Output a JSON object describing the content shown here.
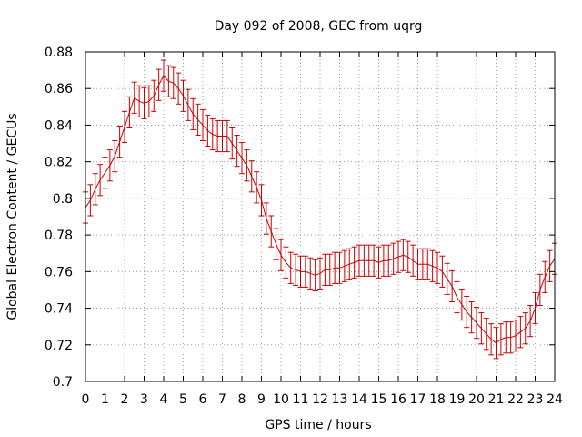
{
  "chart_data": {
    "type": "line",
    "title": "Day 092 of 2008, GEC from uqrg",
    "xlabel": "GPS time / hours",
    "ylabel": "Global Electron Content / GECUs",
    "xlim": [
      0,
      24
    ],
    "ylim": [
      0.7,
      0.88
    ],
    "x_ticks": [
      "0",
      "1",
      "2",
      "3",
      "4",
      "5",
      "6",
      "7",
      "8",
      "9",
      "10",
      "11",
      "12",
      "13",
      "14",
      "15",
      "16",
      "17",
      "18",
      "19",
      "20",
      "21",
      "22",
      "23",
      "24"
    ],
    "y_ticks": [
      "0.7",
      "0.72",
      "0.74",
      "0.76",
      "0.78",
      "0.8",
      "0.82",
      "0.84",
      "0.86",
      "0.88"
    ],
    "grid": true,
    "series": [
      {
        "name": "GEC",
        "color": "#cc0000",
        "error": 0.0085,
        "x": [
          0,
          0.25,
          0.5,
          0.75,
          1,
          1.25,
          1.5,
          1.75,
          2,
          2.25,
          2.5,
          2.75,
          3,
          3.25,
          3.5,
          3.75,
          4,
          4.25,
          4.5,
          4.75,
          5,
          5.25,
          5.5,
          5.75,
          6,
          6.25,
          6.5,
          6.75,
          7,
          7.25,
          7.5,
          7.75,
          8,
          8.25,
          8.5,
          8.75,
          9,
          9.25,
          9.5,
          9.75,
          10,
          10.25,
          10.5,
          10.75,
          11,
          11.25,
          11.5,
          11.75,
          12,
          12.25,
          12.5,
          12.75,
          13,
          13.25,
          13.5,
          13.75,
          14,
          14.25,
          14.5,
          14.75,
          15,
          15.25,
          15.5,
          15.75,
          16,
          16.25,
          16.5,
          16.75,
          17,
          17.25,
          17.5,
          17.75,
          18,
          18.25,
          18.5,
          18.75,
          19,
          19.25,
          19.5,
          19.75,
          20,
          20.25,
          20.5,
          20.75,
          21,
          21.25,
          21.5,
          21.75,
          22,
          22.25,
          22.5,
          22.75,
          23,
          23.25,
          23.5,
          23.75,
          24
        ],
        "y": [
          0.795,
          0.799,
          0.805,
          0.81,
          0.814,
          0.818,
          0.823,
          0.831,
          0.839,
          0.847,
          0.855,
          0.853,
          0.852,
          0.853,
          0.856,
          0.862,
          0.867,
          0.864,
          0.863,
          0.86,
          0.856,
          0.851,
          0.846,
          0.843,
          0.84,
          0.837,
          0.835,
          0.834,
          0.834,
          0.834,
          0.83,
          0.826,
          0.822,
          0.818,
          0.812,
          0.806,
          0.799,
          0.789,
          0.782,
          0.775,
          0.769,
          0.765,
          0.762,
          0.761,
          0.76,
          0.76,
          0.759,
          0.758,
          0.759,
          0.761,
          0.761,
          0.762,
          0.762,
          0.763,
          0.764,
          0.765,
          0.766,
          0.766,
          0.766,
          0.766,
          0.765,
          0.766,
          0.766,
          0.767,
          0.768,
          0.769,
          0.768,
          0.766,
          0.764,
          0.764,
          0.764,
          0.763,
          0.762,
          0.76,
          0.756,
          0.752,
          0.746,
          0.742,
          0.738,
          0.735,
          0.732,
          0.729,
          0.726,
          0.723,
          0.721,
          0.723,
          0.724,
          0.724,
          0.725,
          0.727,
          0.729,
          0.733,
          0.74,
          0.75,
          0.757,
          0.763,
          0.767
        ]
      }
    ]
  }
}
